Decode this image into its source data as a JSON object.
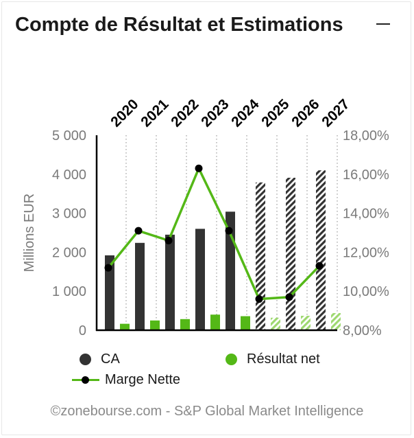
{
  "widget": {
    "title": "Compte de Résultat et Estimations",
    "collapse_icon": "minus-icon",
    "credit": "©zonebourse.com - S&P Global Market Intelligence"
  },
  "colors": {
    "ca": "#333333",
    "net": "#54b817",
    "net_estimate": "#9ed870",
    "line": "#54b817",
    "marker": "#000000"
  },
  "chart_data": {
    "type": "bar",
    "categories": [
      "2020",
      "2021",
      "2022",
      "2023",
      "2024",
      "2025",
      "2026",
      "2027"
    ],
    "estimate_from_index": 5,
    "series": [
      {
        "key": "ca",
        "name": "CA",
        "axis": "left",
        "values": [
          1920,
          2240,
          2450,
          2600,
          3040,
          3790,
          3910,
          4100
        ]
      },
      {
        "key": "net",
        "name": "Résultat net",
        "axis": "left",
        "values": [
          165,
          250,
          285,
          400,
          360,
          320,
          370,
          440
        ]
      },
      {
        "key": "margin",
        "name": "Marge Nette",
        "type": "line",
        "axis": "right",
        "values": [
          11.2,
          13.1,
          12.6,
          16.3,
          13.1,
          9.6,
          9.7,
          11.3
        ]
      }
    ],
    "ylabel": "Millions EUR",
    "ylim": [
      0,
      5000
    ],
    "yticks": [
      "0",
      "1 000",
      "2 000",
      "3 000",
      "4 000",
      "5 000"
    ],
    "y2lim": [
      8,
      18
    ],
    "y2ticks": [
      "8,00%",
      "10,00%",
      "12,00%",
      "14,00%",
      "16,00%",
      "18,00%"
    ],
    "grid": "vertical-dotted",
    "legend": "bottom"
  }
}
